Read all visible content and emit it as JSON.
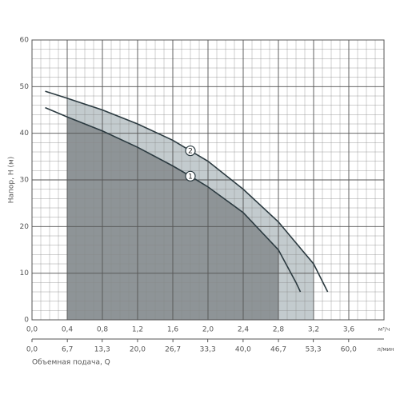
{
  "chart_data": {
    "type": "line",
    "y_label": "Напор, H (м)",
    "x_label": "Объемная подача, Q",
    "x_unit": "м³/ч",
    "x2_unit": "л/мин",
    "xlim": [
      0,
      4.0
    ],
    "xticks": [
      {
        "value": 0,
        "label": "0,0"
      },
      {
        "value": 0.4,
        "label": "0,4"
      },
      {
        "value": 0.8,
        "label": "0,8"
      },
      {
        "value": 1.2,
        "label": "1,2"
      },
      {
        "value": 1.6,
        "label": "1,6"
      },
      {
        "value": 2.0,
        "label": "2,0"
      },
      {
        "value": 2.4,
        "label": "2,4"
      },
      {
        "value": 2.8,
        "label": "2,8"
      },
      {
        "value": 3.2,
        "label": "3,2"
      },
      {
        "value": 3.6,
        "label": "3,6"
      }
    ],
    "x2lim": [
      0,
      66.7
    ],
    "x2ticks": [
      {
        "value": 0,
        "label": "0,0"
      },
      {
        "value": 6.7,
        "label": "6,7"
      },
      {
        "value": 13.3,
        "label": "13,3"
      },
      {
        "value": 20.0,
        "label": "20,0"
      },
      {
        "value": 26.7,
        "label": "26,7"
      },
      {
        "value": 33.3,
        "label": "33,3"
      },
      {
        "value": 40.0,
        "label": "40,0"
      },
      {
        "value": 46.7,
        "label": "46,7"
      },
      {
        "value": 53.3,
        "label": "53,3"
      },
      {
        "value": 60.0,
        "label": "60,0"
      }
    ],
    "ylim": [
      0,
      60
    ],
    "yticks": [
      0,
      10,
      20,
      30,
      40,
      50,
      60
    ],
    "grid": true,
    "series": [
      {
        "name": "2",
        "color": "#2b3a40",
        "fill": "#c3cbce",
        "shade_range": [
          0.4,
          3.2
        ],
        "label_x": 1.8,
        "x": [
          0.15,
          0.4,
          0.8,
          1.2,
          1.6,
          2.0,
          2.4,
          2.8,
          3.2,
          3.36
        ],
        "values": [
          49,
          47.5,
          45,
          42,
          38.5,
          34,
          28,
          21,
          12,
          6
        ]
      },
      {
        "name": "1",
        "color": "#2b3a40",
        "fill": "#8e9497",
        "shade_range": [
          0.4,
          2.8
        ],
        "label_x": 1.8,
        "x": [
          0.15,
          0.4,
          0.8,
          1.2,
          1.6,
          1.8,
          2.0,
          2.4,
          2.8,
          3.0,
          3.05
        ],
        "values": [
          45.5,
          43.5,
          40.5,
          37,
          33,
          30.8,
          28.5,
          23,
          15,
          8,
          6
        ]
      }
    ]
  }
}
